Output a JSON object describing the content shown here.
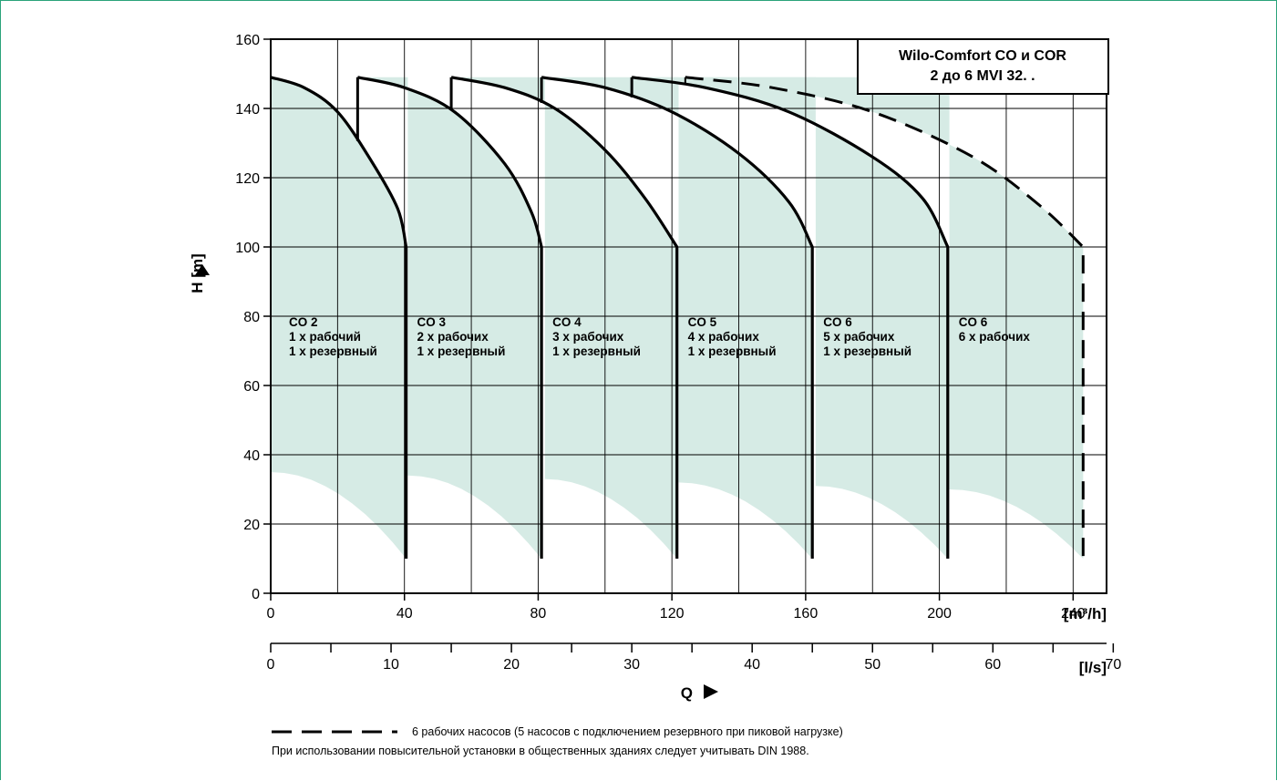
{
  "chart_data": {
    "type": "line",
    "title": [
      "Wilo-Comfort CO и COR",
      "2 до 6 MVI 32. ."
    ],
    "xlabel": "Q",
    "ylabel": "H [m]",
    "x_unit_top": "[m³/h]",
    "x_unit_bottom": "[l/s]",
    "xlim": [
      0,
      250
    ],
    "ylim": [
      0,
      160
    ],
    "x_ticks_m3h": [
      0,
      40,
      80,
      120,
      160,
      200,
      240
    ],
    "x_ticks_ls": [
      0,
      10,
      20,
      30,
      40,
      50,
      60,
      70
    ],
    "y_ticks": [
      0,
      20,
      40,
      60,
      80,
      100,
      120,
      140,
      160
    ],
    "grid": true,
    "colors": {
      "fill": "#d6ebe5",
      "curve": "#000000",
      "frame": "#2aa37a"
    },
    "series": [
      {
        "name": "CO 2",
        "duty": "1 x рабочий",
        "standby": "1 x резервный",
        "curve": [
          [
            0,
            149
          ],
          [
            10,
            146
          ],
          [
            20,
            139
          ],
          [
            30,
            125
          ],
          [
            38,
            111
          ],
          [
            40.5,
            100
          ]
        ],
        "q_max": 40.5,
        "h_min_at_qmax": 10,
        "lower_start": [
          0,
          35
        ],
        "dashed": false
      },
      {
        "name": "CO 3",
        "duty": "2 x рабочих",
        "standby": "1 x резервный",
        "curve": [
          [
            26,
            149
          ],
          [
            40,
            146
          ],
          [
            55,
            139
          ],
          [
            70,
            124
          ],
          [
            78,
            110
          ],
          [
            81,
            100
          ]
        ],
        "q_max": 81,
        "h_min_at_qmax": 10,
        "lower_start": [
          41,
          34
        ],
        "dashed": false
      },
      {
        "name": "CO 4",
        "duty": "3 x рабочих",
        "standby": "1 x резервный",
        "curve": [
          [
            54,
            149
          ],
          [
            70,
            146
          ],
          [
            85,
            140
          ],
          [
            100,
            128
          ],
          [
            112,
            114
          ],
          [
            121.5,
            100
          ]
        ],
        "q_max": 121.5,
        "h_min_at_qmax": 10,
        "lower_start": [
          82,
          33
        ],
        "dashed": false
      },
      {
        "name": "CO 5",
        "duty": "4 x рабочих",
        "standby": "1 x резервный",
        "curve": [
          [
            81,
            149
          ],
          [
            100,
            146
          ],
          [
            120,
            139
          ],
          [
            140,
            127
          ],
          [
            155,
            113
          ],
          [
            162,
            100
          ]
        ],
        "q_max": 162,
        "h_min_at_qmax": 10,
        "lower_start": [
          122,
          32
        ],
        "dashed": false
      },
      {
        "name": "CO 6",
        "duty": "5 x рабочих",
        "standby": "1 x резервный",
        "curve": [
          [
            108,
            149
          ],
          [
            130,
            146
          ],
          [
            155,
            139
          ],
          [
            180,
            126
          ],
          [
            195,
            114
          ],
          [
            202.5,
            100
          ]
        ],
        "q_max": 202.5,
        "h_min_at_qmax": 10,
        "lower_start": [
          163,
          31
        ],
        "dashed": false
      },
      {
        "name": "CO 6",
        "duty": "6 x рабочих",
        "standby": "",
        "curve": [
          [
            124,
            149
          ],
          [
            150,
            146
          ],
          [
            180,
            139
          ],
          [
            210,
            126
          ],
          [
            230,
            112
          ],
          [
            243,
            100
          ]
        ],
        "q_max": 243,
        "h_min_at_qmax": 10,
        "lower_start": [
          203,
          30
        ],
        "dashed": true
      }
    ]
  },
  "legend": {
    "dashed_text": "6 рабочих насосов (5 насосов с подключением резервного при пиковой нагрузке)",
    "note": "При использовании повысительной установки в общественных зданиях следует учитывать DIN 1988."
  }
}
